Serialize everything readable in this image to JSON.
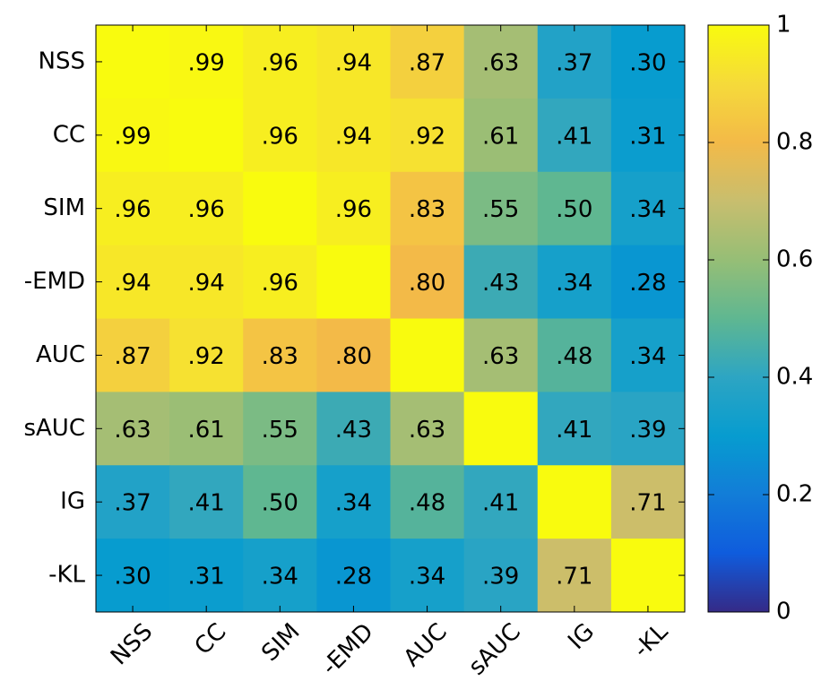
{
  "chart_data": {
    "type": "heatmap",
    "categories": [
      "NSS",
      "CC",
      "SIM",
      "-EMD",
      "AUC",
      "sAUC",
      "IG",
      "-KL"
    ],
    "rows": [
      "NSS",
      "CC",
      "SIM",
      "-EMD",
      "AUC",
      "sAUC",
      "IG",
      "-KL"
    ],
    "values": [
      [
        1,
        0.99,
        0.96,
        0.94,
        0.87,
        0.63,
        0.37,
        0.3
      ],
      [
        0.99,
        1,
        0.96,
        0.94,
        0.92,
        0.61,
        0.41,
        0.31
      ],
      [
        0.96,
        0.96,
        1,
        0.96,
        0.83,
        0.55,
        0.5,
        0.34
      ],
      [
        0.94,
        0.94,
        0.96,
        1,
        0.8,
        0.43,
        0.34,
        0.28
      ],
      [
        0.87,
        0.92,
        0.83,
        0.8,
        1,
        0.63,
        0.48,
        0.34
      ],
      [
        0.63,
        0.61,
        0.55,
        0.43,
        0.63,
        1,
        0.41,
        0.39
      ],
      [
        0.37,
        0.41,
        0.5,
        0.34,
        0.48,
        0.41,
        1,
        0.71
      ],
      [
        0.3,
        0.31,
        0.34,
        0.28,
        0.34,
        0.39,
        0.71,
        1
      ]
    ],
    "value_labels": [
      [
        null,
        ".99",
        ".96",
        ".94",
        ".87",
        ".63",
        ".37",
        ".30"
      ],
      [
        ".99",
        null,
        ".96",
        ".94",
        ".92",
        ".61",
        ".41",
        ".31"
      ],
      [
        ".96",
        ".96",
        null,
        ".96",
        ".83",
        ".55",
        ".50",
        ".34"
      ],
      [
        ".94",
        ".94",
        ".96",
        null,
        ".80",
        ".43",
        ".34",
        ".28"
      ],
      [
        ".87",
        ".92",
        ".83",
        ".80",
        null,
        ".63",
        ".48",
        ".34"
      ],
      [
        ".63",
        ".61",
        ".55",
        ".43",
        ".63",
        null,
        ".41",
        ".39"
      ],
      [
        ".37",
        ".41",
        ".50",
        ".34",
        ".48",
        ".41",
        null,
        ".71"
      ],
      [
        ".30",
        ".31",
        ".34",
        ".28",
        ".34",
        ".39",
        ".71",
        null
      ]
    ],
    "colormap": "parula",
    "clim": [
      0,
      1
    ],
    "cticks": [
      0,
      0.2,
      0.4,
      0.6,
      0.8,
      1
    ]
  }
}
